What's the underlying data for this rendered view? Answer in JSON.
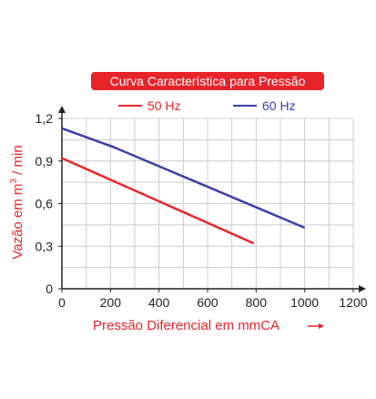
{
  "chart_data": {
    "type": "line",
    "title": "Curva Característica para Pressão",
    "xlabel": "Pressão Diferencial em mmCA",
    "ylabel_parts": [
      "Vazão em m",
      "3",
      " / min"
    ],
    "xlim": [
      0,
      1200
    ],
    "ylim": [
      0,
      1.2
    ],
    "x_ticks": [
      0,
      200,
      400,
      600,
      800,
      1000,
      1200
    ],
    "x_tick_labels": [
      "0",
      "200",
      "400",
      "600",
      "800",
      "1000",
      "1200"
    ],
    "y_ticks": [
      0,
      0.3,
      0.6,
      0.9,
      1.2
    ],
    "y_tick_labels": [
      "0",
      "0,3",
      "0,6",
      "0,9",
      "1,2"
    ],
    "grid": true,
    "legend_position": "top",
    "series": [
      {
        "name": "50 Hz",
        "color": "#e8242b",
        "points": [
          [
            0,
            0.92
          ],
          [
            790,
            0.32
          ]
        ]
      },
      {
        "name": "60 Hz",
        "color": "#3b3fa8",
        "points": [
          [
            0,
            1.13
          ],
          [
            210,
            1.0
          ],
          [
            1000,
            0.43
          ]
        ]
      }
    ],
    "colors": {
      "title_bg": "#e8242b",
      "axis_label": "#e8242b",
      "grid": "#cccccc",
      "axis": "#222222"
    }
  }
}
